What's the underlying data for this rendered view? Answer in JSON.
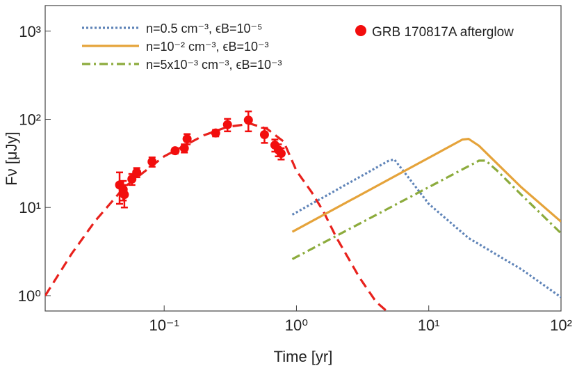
{
  "chart_data": {
    "type": "line",
    "xlabel": "Time [yr]",
    "ylabel": "Fν [μJy]",
    "xscale": "log",
    "yscale": "log",
    "xlim": [
      0.0126,
      100
    ],
    "ylim": [
      0.67,
      1950
    ],
    "xticks": [
      {
        "value": 0.1,
        "label": "10⁻¹"
      },
      {
        "value": 1,
        "label": "10⁰"
      },
      {
        "value": 10,
        "label": "10¹"
      },
      {
        "value": 100,
        "label": "10²"
      }
    ],
    "yticks": [
      {
        "value": 1,
        "label": "10⁰"
      },
      {
        "value": 10,
        "label": "10¹"
      },
      {
        "value": 100,
        "label": "10²"
      },
      {
        "value": 1000,
        "label": "10³"
      }
    ],
    "series": [
      {
        "color": "#e8211c",
        "dash": "dashed",
        "x": [
          0.0126,
          0.02,
          0.03,
          0.05,
          0.1,
          0.2,
          0.3,
          0.45,
          0.6,
          0.8,
          1,
          1.3,
          1.6,
          2,
          3,
          4,
          4.8
        ],
        "values": [
          1.0,
          3,
          7,
          17,
          38,
          66,
          82,
          89,
          78,
          56,
          26,
          15,
          9,
          4.6,
          1.6,
          0.85,
          0.67
        ]
      },
      {
        "name": "n=0.5 cm⁻³, ϵB=10⁻⁵",
        "color": "#5f84b8",
        "dash": "dotted",
        "x": [
          0.93,
          5,
          5.5,
          7,
          10,
          20,
          50,
          100
        ],
        "values": [
          8.3,
          34,
          35,
          22,
          11,
          4.5,
          2,
          0.96
        ]
      },
      {
        "name": "n=10⁻² cm⁻³, ϵB=10⁻³",
        "color": "#e5a33a",
        "dash": "solid",
        "x": [
          0.93,
          18,
          20,
          24,
          30,
          50,
          100
        ],
        "values": [
          5.3,
          59,
          60,
          50,
          36,
          17,
          6.9
        ]
      },
      {
        "name": "n=5x10⁻³ cm⁻³, ϵB=10⁻³",
        "color": "#8cab3c",
        "dash": "dashdot",
        "x": [
          0.93,
          24,
          27,
          33,
          50,
          100
        ],
        "values": [
          2.6,
          34,
          34,
          26,
          14,
          5.1
        ]
      },
      {
        "name": "GRB 170817A afterglow",
        "kind": "scatter",
        "color": "#f20d0d",
        "x": [
          0.046,
          0.049,
          0.05,
          0.057,
          0.062,
          0.081,
          0.121,
          0.142,
          0.149,
          0.245,
          0.301,
          0.433,
          0.573,
          0.687,
          0.73,
          0.766
        ],
        "values": [
          18,
          16,
          14,
          21,
          25,
          33,
          44,
          47,
          60,
          70,
          87,
          98,
          67,
          51,
          45,
          41
        ],
        "errors": [
          7,
          4,
          4,
          3,
          3,
          4,
          3,
          5,
          8,
          6,
          14,
          25,
          13,
          8,
          7,
          6
        ]
      }
    ]
  }
}
